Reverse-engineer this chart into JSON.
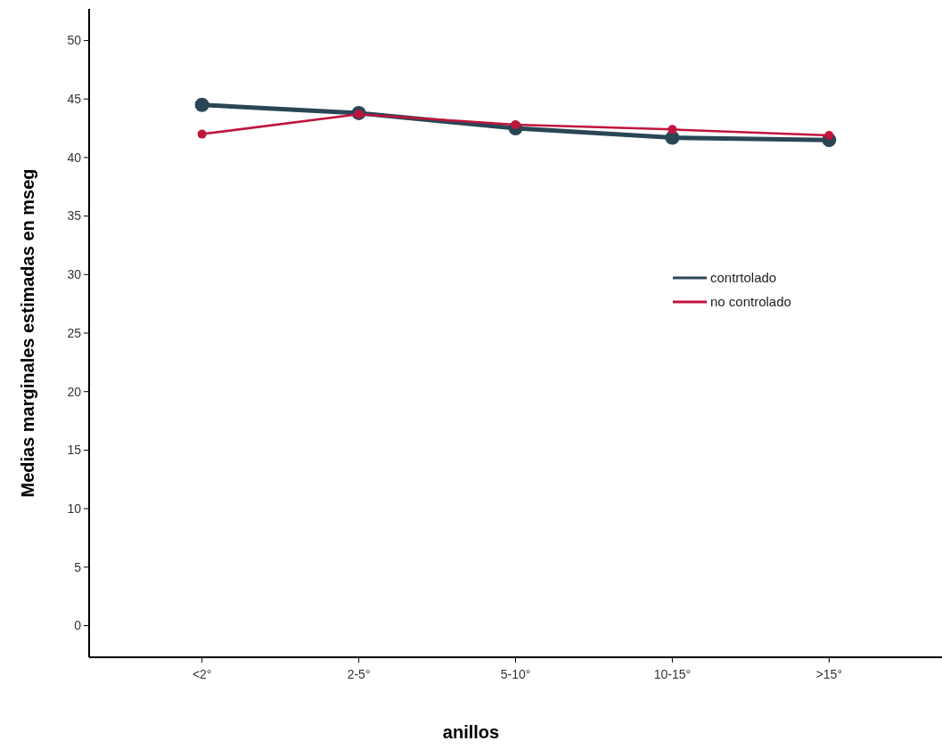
{
  "chart_data": {
    "type": "line",
    "xlabel": "anillos",
    "ylabel": "Medias marginales estimadas en mseg",
    "categories": [
      "<2°",
      "2-5°",
      "5-10°",
      "10-15°",
      ">15°"
    ],
    "series": [
      {
        "name": "contrtolado",
        "color": "#2a4656",
        "values": [
          44.5,
          43.8,
          42.5,
          41.7,
          41.5
        ]
      },
      {
        "name": "no controlado",
        "color": "#c0143c",
        "values": [
          42.0,
          43.7,
          42.8,
          42.4,
          41.9
        ]
      }
    ],
    "ylim": [
      -2.7,
      52.7
    ],
    "yticks": [
      0,
      5,
      10,
      15,
      20,
      25,
      30,
      35,
      40,
      45,
      50
    ],
    "marker": "circle",
    "legend": "right",
    "grid": false
  }
}
